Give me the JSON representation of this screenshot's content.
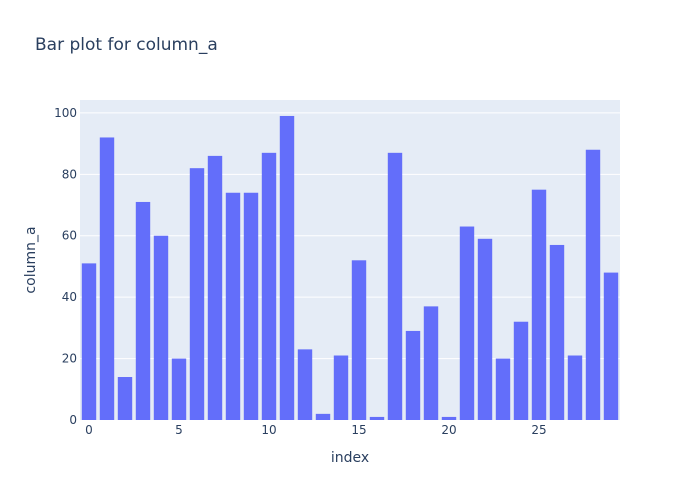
{
  "chart_data": {
    "type": "bar",
    "title": "Bar plot for column_a",
    "xlabel": "index",
    "ylabel": "column_a",
    "x": [
      0,
      1,
      2,
      3,
      4,
      5,
      6,
      7,
      8,
      9,
      10,
      11,
      12,
      13,
      14,
      15,
      16,
      17,
      18,
      19,
      20,
      21,
      22,
      23,
      24,
      25,
      26,
      27,
      28,
      29
    ],
    "values": [
      51,
      92,
      14,
      71,
      60,
      20,
      82,
      86,
      74,
      74,
      87,
      99,
      23,
      2,
      21,
      52,
      1,
      87,
      29,
      37,
      1,
      63,
      59,
      20,
      32,
      75,
      57,
      21,
      88,
      48
    ],
    "xlim": [
      -0.5,
      29.5
    ],
    "ylim": [
      0,
      104.2
    ],
    "x_ticks": [
      0,
      5,
      10,
      15,
      20,
      25
    ],
    "y_ticks": [
      0,
      20,
      40,
      60,
      80,
      100
    ],
    "grid": true,
    "colors": {
      "bar": "#636efa",
      "plot_background": "#e5ecf6",
      "gridline": "#ffffff",
      "text": "#2a3f5f"
    }
  }
}
